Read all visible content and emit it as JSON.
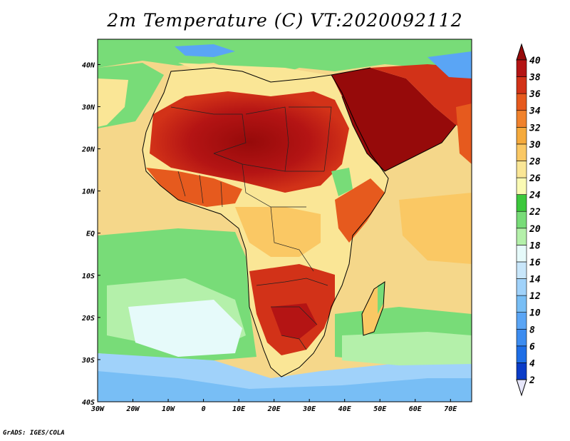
{
  "title": "2m Temperature (C) VT:2020092112",
  "credit": "GrADS: IGES/COLA",
  "map": {
    "lon_range": [
      -30,
      76
    ],
    "lat_range": [
      -40,
      46
    ],
    "x_ticks": [
      {
        "lon": -30,
        "label": "30W"
      },
      {
        "lon": -20,
        "label": "20W"
      },
      {
        "lon": -10,
        "label": "10W"
      },
      {
        "lon": 0,
        "label": "0"
      },
      {
        "lon": 10,
        "label": "10E"
      },
      {
        "lon": 20,
        "label": "20E"
      },
      {
        "lon": 30,
        "label": "30E"
      },
      {
        "lon": 40,
        "label": "40E"
      },
      {
        "lon": 50,
        "label": "50E"
      },
      {
        "lon": 60,
        "label": "60E"
      },
      {
        "lon": 70,
        "label": "70E"
      }
    ],
    "y_ticks": [
      {
        "lat": 40,
        "label": "40N"
      },
      {
        "lat": 30,
        "label": "30N"
      },
      {
        "lat": 20,
        "label": "20N"
      },
      {
        "lat": 10,
        "label": "10N"
      },
      {
        "lat": 0,
        "label": "EQ"
      },
      {
        "lat": -10,
        "label": "10S"
      },
      {
        "lat": -20,
        "label": "20S"
      },
      {
        "lat": -30,
        "label": "30S"
      },
      {
        "lat": -40,
        "label": "40S"
      }
    ],
    "ocean_color": "#f5d78a",
    "land_hot_color": "#d23218",
    "land_hottest_color": "#a50f0f"
  },
  "colorbar": {
    "levels": [
      "2",
      "4",
      "6",
      "8",
      "10",
      "12",
      "14",
      "16",
      "18",
      "20",
      "22",
      "24",
      "26",
      "28",
      "30",
      "32",
      "34",
      "36",
      "38",
      "40"
    ],
    "colors": [
      "#1e1e8c",
      "#0a3cc8",
      "#1e6ee6",
      "#3c8cf0",
      "#5aa5f5",
      "#78bef5",
      "#a0d2fa",
      "#c8e6fa",
      "#e6fafa",
      "#b4f0aa",
      "#78dc78",
      "#3cc83c",
      "#fafab4",
      "#fae696",
      "#fac864",
      "#f5aa3c",
      "#f0822d",
      "#e65a1e",
      "#d23218",
      "#b41414",
      "#960a0a"
    ]
  }
}
